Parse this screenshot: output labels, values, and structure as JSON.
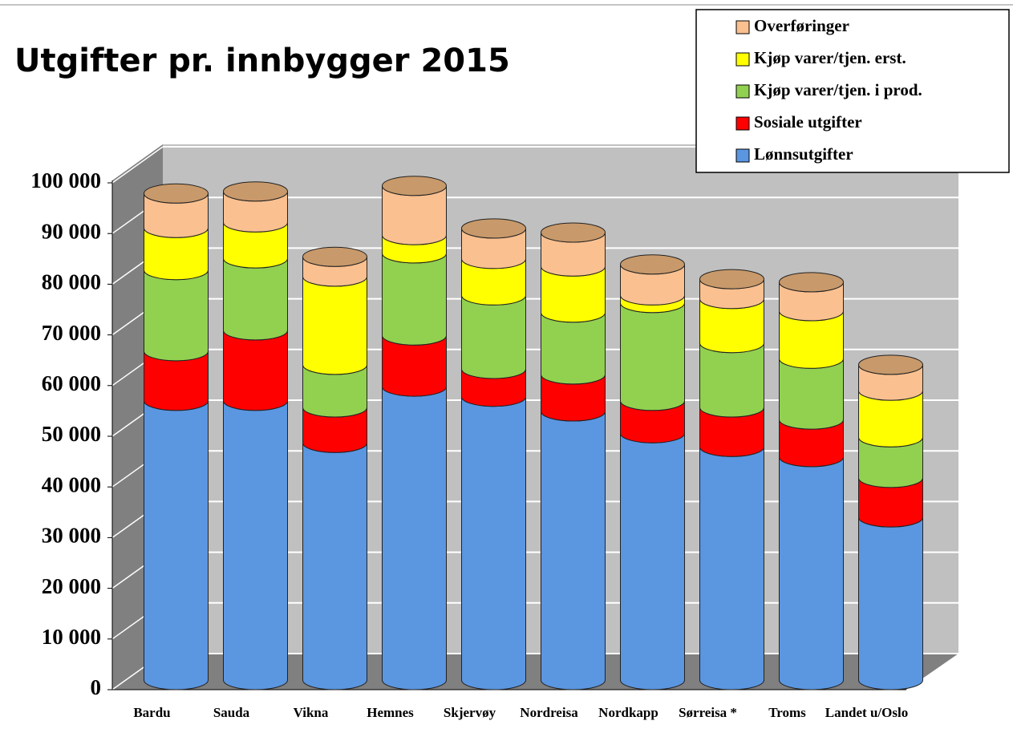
{
  "chart_data": {
    "type": "stacked_bar_3d",
    "title": "Utgifter pr. innbygger 2015",
    "categories": [
      "Bardu",
      "Sauda",
      "Vikna",
      "Hemnes",
      "Skjervøy",
      "Nordreisa",
      "Nordkapp",
      "Sørreisa *",
      "Troms",
      "Landet u/Oslo"
    ],
    "series": [
      {
        "name": "Lønnsutgifter",
        "color": "#5b96e0",
        "values": [
          55100,
          55100,
          46800,
          57900,
          55900,
          53000,
          48700,
          46000,
          44000,
          32100
        ]
      },
      {
        "name": "Sosiale utgifter",
        "color": "#ff0000",
        "values": [
          9800,
          13900,
          7000,
          10100,
          5500,
          7300,
          6400,
          7800,
          7400,
          7800
        ]
      },
      {
        "name": "Kjøp varer/tjen. i prod.",
        "color": "#92d050",
        "values": [
          16000,
          14200,
          8400,
          16200,
          14500,
          12200,
          19300,
          12700,
          12000,
          8000
        ]
      },
      {
        "name": "Kjøp varer/tjen. erst.",
        "color": "#ffff00",
        "values": [
          8300,
          7100,
          17400,
          3600,
          7200,
          9100,
          1500,
          8700,
          9400,
          9200
        ]
      },
      {
        "name": "Overføringer",
        "color": "#fac090",
        "values": [
          6800,
          6100,
          3900,
          9700,
          6000,
          6700,
          6100,
          3900,
          5700,
          5100
        ]
      }
    ],
    "ylim": [
      0,
      100000
    ],
    "yticks": [
      0,
      {
        "value": 10000,
        "label": "10 000"
      },
      {
        "value": 20000,
        "label": "20 000"
      },
      {
        "value": 30000,
        "label": "30 000"
      },
      {
        "value": 40000,
        "label": "40 000"
      },
      {
        "value": 50000,
        "label": "50 000"
      },
      {
        "value": 60000,
        "label": "60 000"
      },
      {
        "value": 70000,
        "label": "70 000"
      },
      {
        "value": 80000,
        "label": "80 000"
      },
      {
        "value": 90000,
        "label": "90 000"
      },
      {
        "value": 100000,
        "label": "100 000"
      }
    ],
    "grid": true,
    "legend": "top-right"
  }
}
